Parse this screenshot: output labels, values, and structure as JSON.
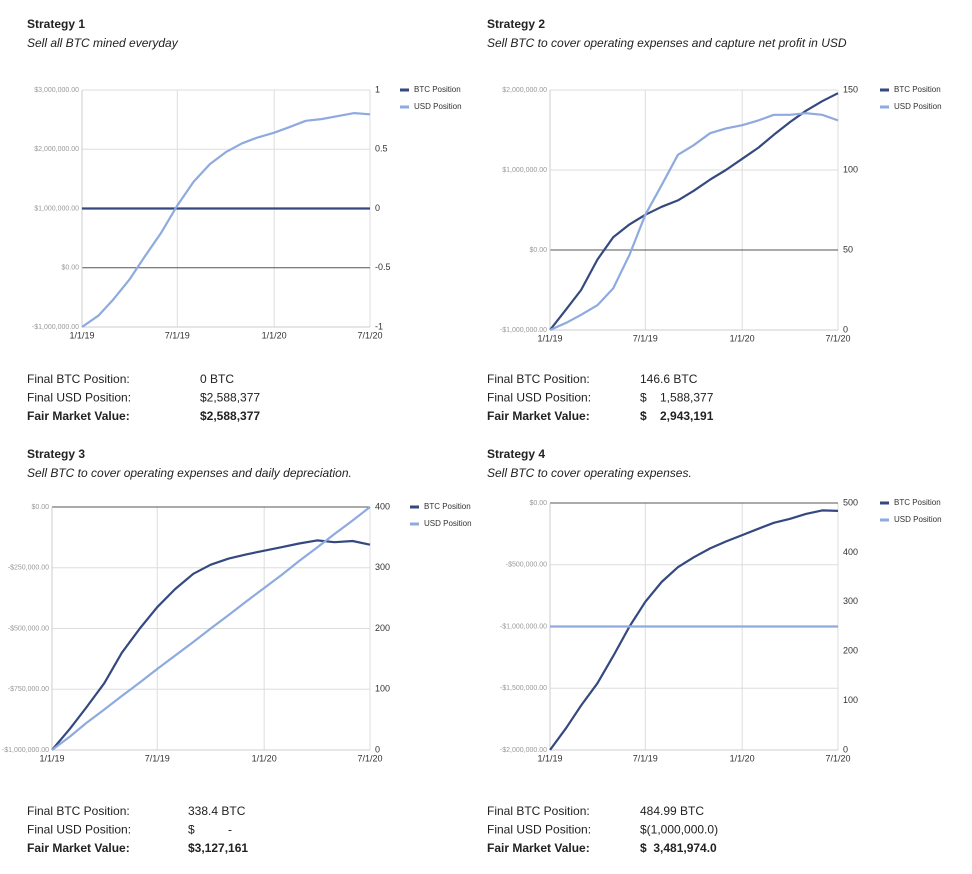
{
  "chart_data": [
    {
      "type": "line",
      "title": "Strategy 1",
      "subtitle": "Sell all BTC mined everyday",
      "x": [
        "1/1/19",
        "2/1/19",
        "3/1/19",
        "4/1/19",
        "5/1/19",
        "6/1/19",
        "7/1/19",
        "8/1/19",
        "9/1/19",
        "10/1/19",
        "11/1/19",
        "12/1/19",
        "1/1/20",
        "2/1/20",
        "3/1/20",
        "4/1/20",
        "5/1/20",
        "6/1/20",
        "7/1/20"
      ],
      "series": [
        {
          "name": "BTC Position",
          "color": "#34497f",
          "axis": "y2",
          "values": [
            0,
            0,
            0,
            0,
            0,
            0,
            0,
            0,
            0,
            0,
            0,
            0,
            0,
            0,
            0,
            0,
            0,
            0,
            0
          ]
        },
        {
          "name": "USD Position",
          "color": "#8eaadf",
          "values": [
            -1000000,
            -810000,
            -540000,
            -200000,
            200000,
            600000,
            1050000,
            1450000,
            1750000,
            1950000,
            2100000,
            2200000,
            2280000,
            2380000,
            2480000,
            2510000,
            2560000,
            2610000,
            2590000
          ]
        }
      ],
      "xlim": [
        "1/1/19",
        "7/1/20"
      ],
      "xticks": [
        "1/1/19",
        "7/1/19",
        "1/1/20",
        "7/1/20"
      ],
      "ylim": [
        -1000000,
        3000000
      ],
      "yticks": [
        {
          "value": -1000000,
          "label": "-$1,000,000.00"
        },
        {
          "value": 0,
          "label": "$0.00"
        },
        {
          "value": 1000000,
          "label": "$1,000,000.00"
        },
        {
          "value": 2000000,
          "label": "$2,000,000.00"
        },
        {
          "value": 3000000,
          "label": "$3,000,000.00"
        }
      ],
      "y2lim": [
        -1,
        1
      ],
      "y2ticks": [
        -1,
        -0.5,
        0,
        0.5,
        1
      ],
      "grid": true,
      "summary": [
        {
          "label": "Final BTC Position:",
          "value": "0 BTC"
        },
        {
          "label": "Final USD Position:",
          "value": "$2,588,377"
        },
        {
          "label": "Fair Market Value:",
          "value": "$2,588,377"
        }
      ]
    },
    {
      "type": "line",
      "title": "Strategy 2",
      "subtitle": "Sell BTC to cover operating expenses and capture net profit in USD",
      "x": [
        "1/1/19",
        "2/1/19",
        "3/1/19",
        "4/1/19",
        "5/1/19",
        "6/1/19",
        "7/1/19",
        "8/1/19",
        "9/1/19",
        "10/1/19",
        "11/1/19",
        "12/1/19",
        "1/1/20",
        "2/1/20",
        "3/1/20",
        "4/1/20",
        "5/1/20",
        "6/1/20",
        "7/1/20"
      ],
      "series": [
        {
          "name": "BTC Position",
          "color": "#34497f",
          "axis": "y2",
          "values": [
            0,
            13,
            25,
            44,
            58,
            66,
            72,
            77,
            81,
            87,
            94,
            100,
            107,
            114,
            122,
            130,
            137,
            143,
            148
          ]
        },
        {
          "name": "USD Position",
          "color": "#8eaadf",
          "values": [
            -1000000,
            -910000,
            -810000,
            -690000,
            -480000,
            -60000,
            440000,
            810000,
            1190000,
            1310000,
            1460000,
            1520000,
            1560000,
            1620000,
            1690000,
            1690000,
            1710000,
            1690000,
            1620000
          ]
        }
      ],
      "xlim": [
        "1/1/19",
        "7/1/20"
      ],
      "xticks": [
        "1/1/19",
        "7/1/19",
        "1/1/20",
        "7/1/20"
      ],
      "ylim": [
        -1000000,
        2000000
      ],
      "yticks": [
        {
          "value": -1000000,
          "label": "-$1,000,000.00"
        },
        {
          "value": 0,
          "label": "$0.00"
        },
        {
          "value": 1000000,
          "label": "$1,000,000.00"
        },
        {
          "value": 2000000,
          "label": "$2,000,000.00"
        }
      ],
      "y2lim": [
        0,
        150
      ],
      "y2ticks": [
        0,
        50,
        100,
        150
      ],
      "grid": true,
      "summary": [
        {
          "label": "Final BTC Position:",
          "value": "146.6 BTC"
        },
        {
          "label": "Final USD Position:",
          "value": "$    1,588,377"
        },
        {
          "label": "Fair Market Value:",
          "value": "$    2,943,191"
        }
      ]
    },
    {
      "type": "line",
      "title": "Strategy 3",
      "subtitle": "Sell BTC to cover operating expenses and daily depreciation.",
      "x": [
        "1/1/19",
        "2/1/19",
        "3/1/19",
        "4/1/19",
        "5/1/19",
        "6/1/19",
        "7/1/19",
        "8/1/19",
        "9/1/19",
        "10/1/19",
        "11/1/19",
        "12/1/19",
        "1/1/20",
        "2/1/20",
        "3/1/20",
        "4/1/20",
        "5/1/20",
        "6/1/20",
        "7/1/20"
      ],
      "series": [
        {
          "name": "BTC Position",
          "color": "#34497f",
          "axis": "y2",
          "values": [
            0,
            35,
            70,
            110,
            160,
            200,
            235,
            265,
            290,
            305,
            315,
            322,
            328,
            334,
            340,
            345,
            342,
            344,
            338
          ]
        },
        {
          "name": "USD Position",
          "color": "#8eaadf",
          "values": [
            -1000000,
            -944444,
            -888889,
            -833333,
            -777778,
            -722222,
            -666667,
            -611111,
            -555556,
            -500000,
            -444444,
            -388889,
            -333333,
            -277778,
            -222222,
            -166667,
            -111111,
            -55556,
            0
          ]
        }
      ],
      "xlim": [
        "1/1/19",
        "7/1/20"
      ],
      "xticks": [
        "1/1/19",
        "7/1/19",
        "1/1/20",
        "7/1/20"
      ],
      "ylim": [
        -1000000,
        0
      ],
      "yticks": [
        {
          "value": -1000000,
          "label": "-$1,000,000.00"
        },
        {
          "value": -750000,
          "label": "-$750,000.00"
        },
        {
          "value": -500000,
          "label": "-$500,000.00"
        },
        {
          "value": -250000,
          "label": "-$250,000.00"
        },
        {
          "value": 0,
          "label": "$0.00"
        }
      ],
      "y2lim": [
        0,
        400
      ],
      "y2ticks": [
        0,
        100,
        200,
        300,
        400
      ],
      "grid": true,
      "summary": [
        {
          "label": "Final BTC Position:",
          "value": "338.4 BTC"
        },
        {
          "label": "Final USD Position:",
          "value": "$          -"
        },
        {
          "label": "Fair Market Value:",
          "value": "$3,127,161"
        }
      ]
    },
    {
      "type": "line",
      "title": "Strategy 4",
      "subtitle": "Sell BTC to cover operating expenses.",
      "x": [
        "1/1/19",
        "2/1/19",
        "3/1/19",
        "4/1/19",
        "5/1/19",
        "6/1/19",
        "7/1/19",
        "8/1/19",
        "9/1/19",
        "10/1/19",
        "11/1/19",
        "12/1/19",
        "1/1/20",
        "2/1/20",
        "3/1/20",
        "4/1/20",
        "5/1/20",
        "6/1/20",
        "7/1/20"
      ],
      "series": [
        {
          "name": "BTC Position",
          "color": "#34497f",
          "axis": "y2",
          "values": [
            0,
            45,
            90,
            135,
            190,
            250,
            300,
            340,
            370,
            390,
            408,
            422,
            435,
            448,
            460,
            468,
            478,
            485,
            484
          ]
        },
        {
          "name": "USD Position",
          "color": "#8eaadf",
          "values": [
            -1000000,
            -1000000,
            -1000000,
            -1000000,
            -1000000,
            -1000000,
            -1000000,
            -1000000,
            -1000000,
            -1000000,
            -1000000,
            -1000000,
            -1000000,
            -1000000,
            -1000000,
            -1000000,
            -1000000,
            -1000000,
            -1000000
          ]
        }
      ],
      "xlim": [
        "1/1/19",
        "7/1/20"
      ],
      "xticks": [
        "1/1/19",
        "7/1/19",
        "1/1/20",
        "7/1/20"
      ],
      "ylim": [
        -2000000,
        0
      ],
      "yticks": [
        {
          "value": -2000000,
          "label": "-$2,000,000.00"
        },
        {
          "value": -1500000,
          "label": "-$1,500,000.00"
        },
        {
          "value": -1000000,
          "label": "-$1,000,000.00"
        },
        {
          "value": -500000,
          "label": "-$500,000.00"
        },
        {
          "value": 0,
          "label": "$0.00"
        }
      ],
      "y2lim": [
        0,
        500
      ],
      "y2ticks": [
        0,
        100,
        200,
        300,
        400,
        500
      ],
      "grid": true,
      "summary": [
        {
          "label": "Final BTC Position:",
          "value": "484.99 BTC"
        },
        {
          "label": "Final USD Position:",
          "value": "$(1,000,000.0)"
        },
        {
          "label": "Fair Market Value:",
          "value": "$  3,481,974.0"
        }
      ]
    }
  ]
}
